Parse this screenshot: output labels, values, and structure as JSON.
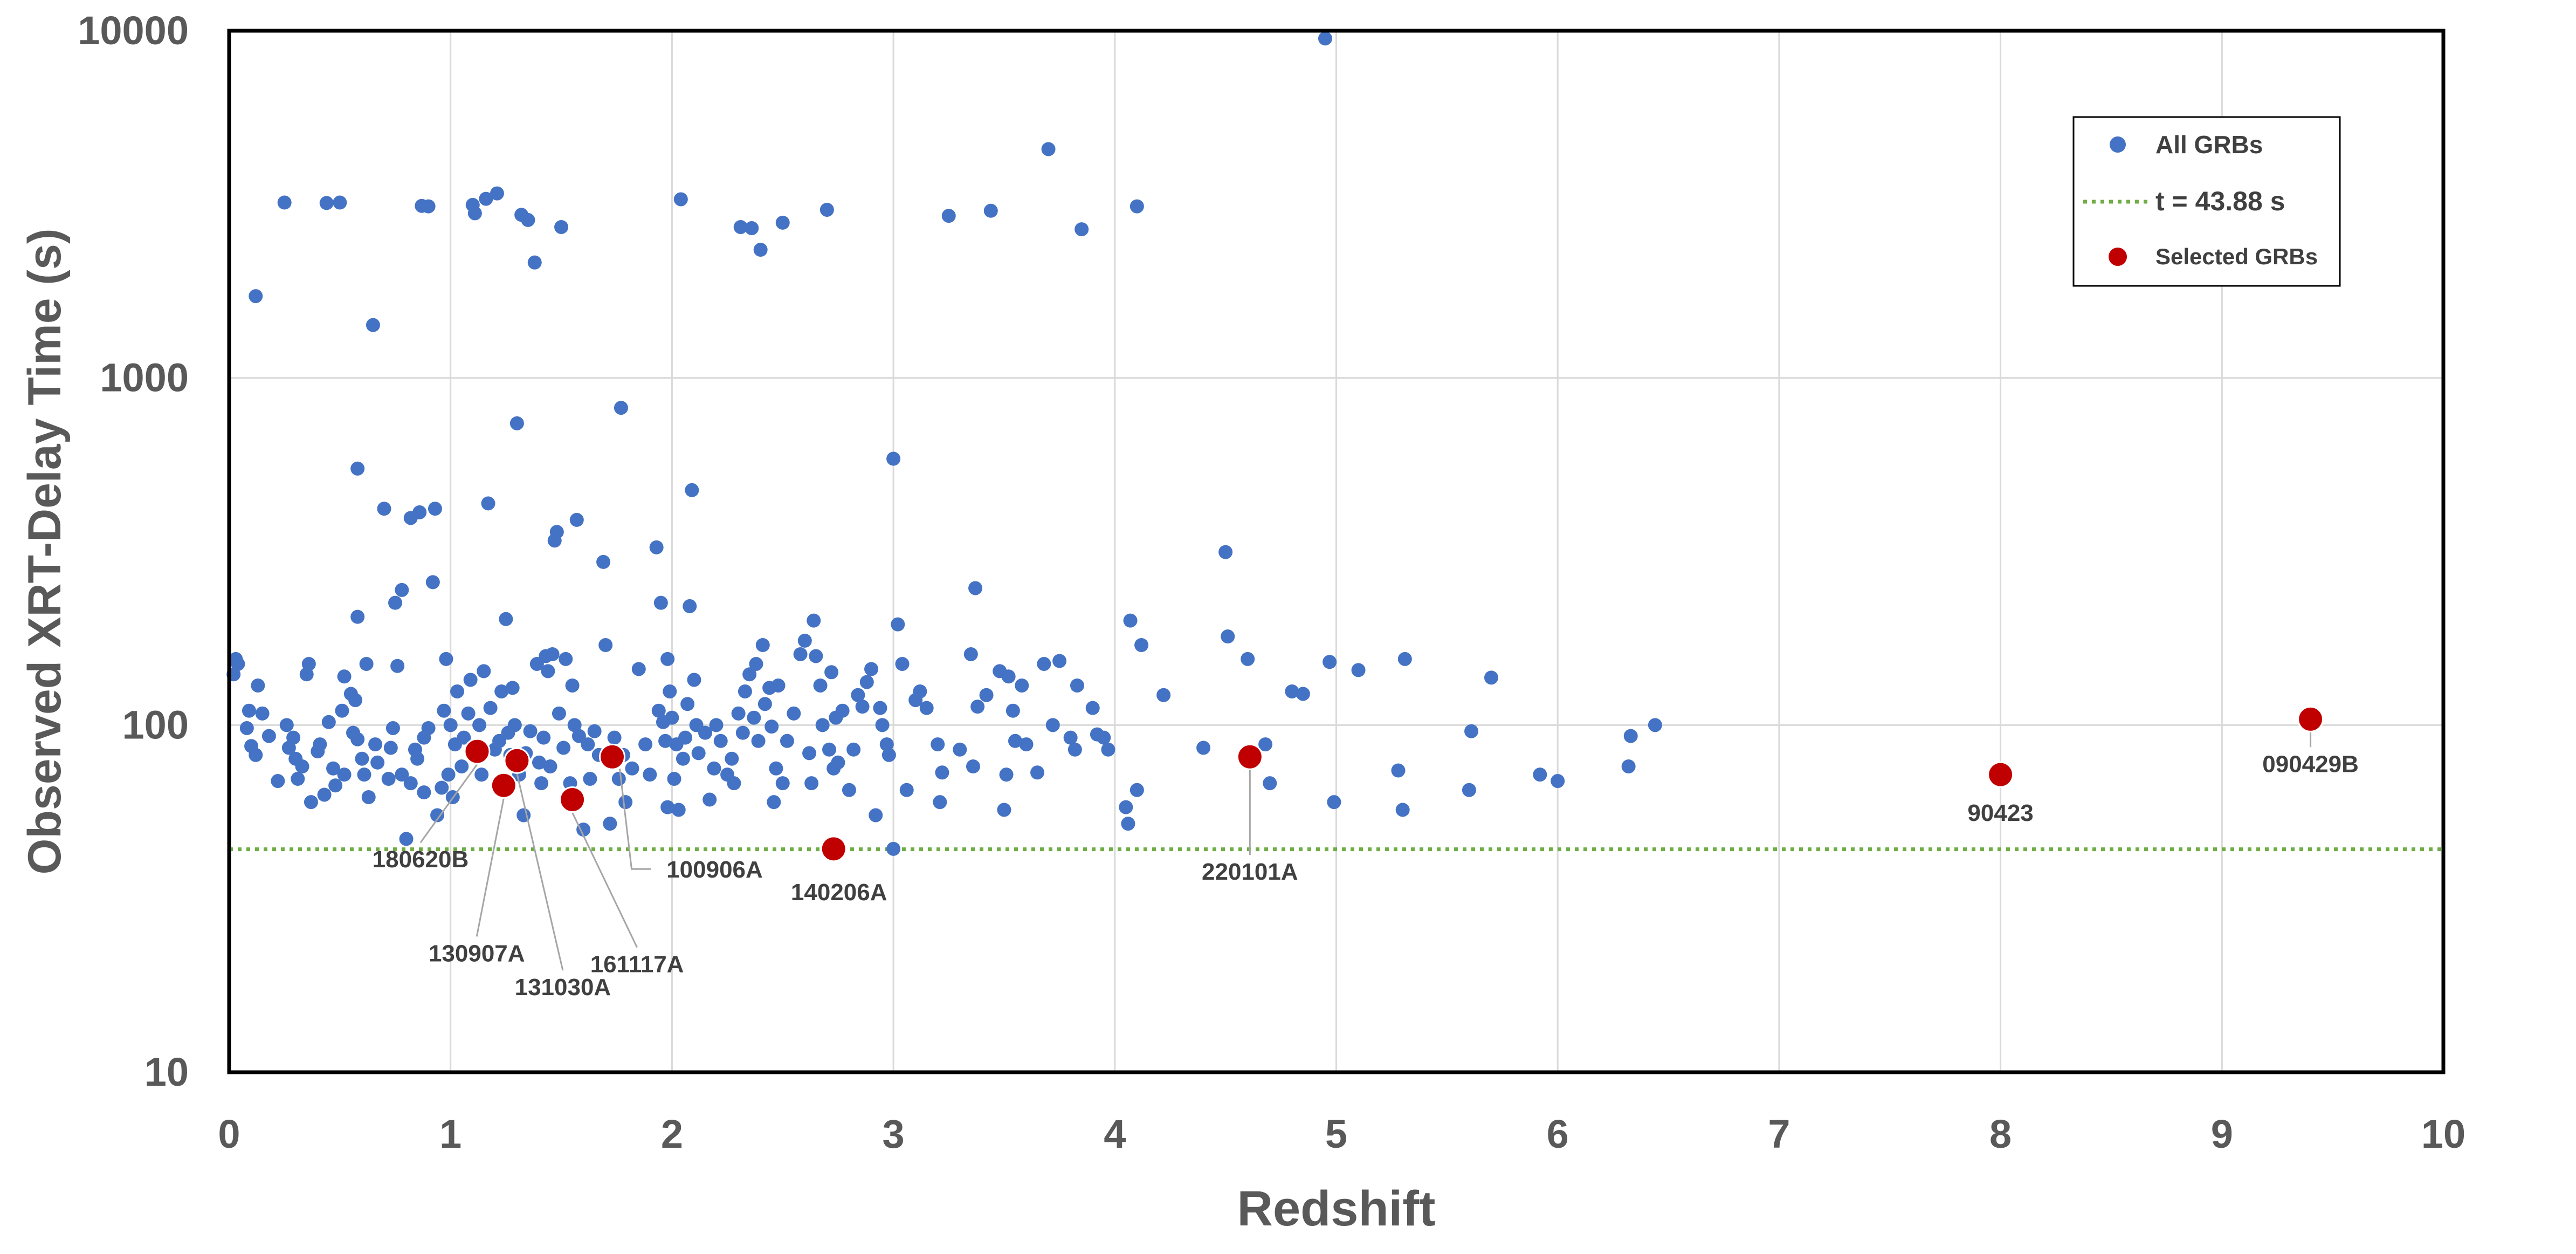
{
  "chart_data": {
    "type": "scatter",
    "title": "",
    "xlabel": "Redshift",
    "ylabel": "Observed XRT-Delay Time (s)",
    "xlim": [
      0,
      10
    ],
    "ylim": [
      10,
      10000
    ],
    "yscale": "log",
    "xticks": [
      "0",
      "1",
      "2",
      "3",
      "4",
      "5",
      "6",
      "7",
      "8",
      "9",
      "10"
    ],
    "yticks": [
      "10",
      "100",
      "1000",
      "10000"
    ],
    "grid": true,
    "legend_placement": "top-right",
    "legend": [
      "All GRBs",
      "t = 43.88 s",
      "Selected GRBs"
    ],
    "colors": {
      "all": "#4472c4",
      "threshold": "#70ad47",
      "selected": "#c00000"
    },
    "threshold": {
      "name": "t = 43.88 s",
      "y": 43.88
    },
    "series": [
      {
        "name": "All GRBs",
        "points": [
          [
            0.02,
            140
          ],
          [
            0.03,
            155
          ],
          [
            0.04,
            150
          ],
          [
            0.08,
            98
          ],
          [
            0.09,
            110
          ],
          [
            0.1,
            87
          ],
          [
            0.12,
            82
          ],
          [
            0.12,
            1720
          ],
          [
            0.13,
            130
          ],
          [
            0.15,
            108
          ],
          [
            0.18,
            93
          ],
          [
            0.22,
            69
          ],
          [
            0.25,
            3200
          ],
          [
            0.26,
            100
          ],
          [
            0.27,
            86
          ],
          [
            0.29,
            92
          ],
          [
            0.3,
            80
          ],
          [
            0.31,
            70
          ],
          [
            0.33,
            76
          ],
          [
            0.35,
            140
          ],
          [
            0.36,
            150
          ],
          [
            0.37,
            60
          ],
          [
            0.4,
            84
          ],
          [
            0.41,
            88
          ],
          [
            0.43,
            63
          ],
          [
            0.44,
            3190
          ],
          [
            0.45,
            102
          ],
          [
            0.47,
            75
          ],
          [
            0.48,
            67
          ],
          [
            0.5,
            3200
          ],
          [
            0.51,
            110
          ],
          [
            0.52,
            138
          ],
          [
            0.52,
            72
          ],
          [
            0.55,
            123
          ],
          [
            0.56,
            95
          ],
          [
            0.57,
            118
          ],
          [
            0.58,
            91
          ],
          [
            0.58,
            205
          ],
          [
            0.58,
            548
          ],
          [
            0.6,
            80
          ],
          [
            0.61,
            72
          ],
          [
            0.62,
            150
          ],
          [
            0.63,
            62
          ],
          [
            0.65,
            1420
          ],
          [
            0.66,
            88
          ],
          [
            0.67,
            78
          ],
          [
            0.7,
            420
          ],
          [
            0.72,
            70
          ],
          [
            0.73,
            86
          ],
          [
            0.74,
            98
          ],
          [
            0.75,
            225
          ],
          [
            0.76,
            148
          ],
          [
            0.78,
            245
          ],
          [
            0.78,
            72
          ],
          [
            0.8,
            47
          ],
          [
            0.82,
            68
          ],
          [
            0.82,
            395
          ],
          [
            0.84,
            85
          ],
          [
            0.85,
            80
          ],
          [
            0.86,
            410
          ],
          [
            0.87,
            3130
          ],
          [
            0.88,
            64
          ],
          [
            0.88,
            92
          ],
          [
            0.9,
            98
          ],
          [
            0.9,
            3120
          ],
          [
            0.92,
            258
          ],
          [
            0.93,
            420
          ],
          [
            0.94,
            55
          ],
          [
            0.96,
            66
          ],
          [
            0.97,
            110
          ],
          [
            0.98,
            155
          ],
          [
            0.99,
            72
          ],
          [
            1.0,
            100
          ],
          [
            1.01,
            62
          ],
          [
            1.02,
            88
          ],
          [
            1.03,
            125
          ],
          [
            1.05,
            76
          ],
          [
            1.06,
            92
          ],
          [
            1.08,
            108
          ],
          [
            1.09,
            135
          ],
          [
            1.1,
            3150
          ],
          [
            1.11,
            2980
          ],
          [
            1.12,
            82
          ],
          [
            1.13,
            100
          ],
          [
            1.14,
            72
          ],
          [
            1.15,
            143
          ],
          [
            1.16,
            3280
          ],
          [
            1.17,
            435
          ],
          [
            1.18,
            112
          ],
          [
            1.2,
            85
          ],
          [
            1.21,
            3400
          ],
          [
            1.22,
            90
          ],
          [
            1.23,
            125
          ],
          [
            1.25,
            202
          ],
          [
            1.26,
            95
          ],
          [
            1.27,
            82
          ],
          [
            1.28,
            128
          ],
          [
            1.29,
            100
          ],
          [
            1.3,
            740
          ],
          [
            1.31,
            72
          ],
          [
            1.32,
            2950
          ],
          [
            1.33,
            55
          ],
          [
            1.34,
            83
          ],
          [
            1.35,
            2850
          ],
          [
            1.36,
            96
          ],
          [
            1.38,
            2150
          ],
          [
            1.39,
            150
          ],
          [
            1.4,
            78
          ],
          [
            1.41,
            68
          ],
          [
            1.42,
            92
          ],
          [
            1.43,
            158
          ],
          [
            1.44,
            143
          ],
          [
            1.45,
            76
          ],
          [
            1.46,
            160
          ],
          [
            1.47,
            340
          ],
          [
            1.48,
            360
          ],
          [
            1.49,
            108
          ],
          [
            1.5,
            2720
          ],
          [
            1.51,
            86
          ],
          [
            1.52,
            155
          ],
          [
            1.54,
            68
          ],
          [
            1.55,
            130
          ],
          [
            1.56,
            100
          ],
          [
            1.57,
            390
          ],
          [
            1.58,
            93
          ],
          [
            1.6,
            50
          ],
          [
            1.62,
            88
          ],
          [
            1.63,
            70
          ],
          [
            1.65,
            96
          ],
          [
            1.67,
            82
          ],
          [
            1.69,
            295
          ],
          [
            1.7,
            170
          ],
          [
            1.72,
            52
          ],
          [
            1.74,
            92
          ],
          [
            1.76,
            70
          ],
          [
            1.77,
            820
          ],
          [
            1.78,
            82
          ],
          [
            1.79,
            60
          ],
          [
            1.82,
            75
          ],
          [
            1.85,
            145
          ],
          [
            1.88,
            88
          ],
          [
            1.9,
            72
          ],
          [
            1.93,
            325
          ],
          [
            1.94,
            110
          ],
          [
            1.95,
            225
          ],
          [
            1.96,
            102
          ],
          [
            1.97,
            90
          ],
          [
            1.98,
            155
          ],
          [
            1.98,
            58
          ],
          [
            1.99,
            125
          ],
          [
            2.0,
            105
          ],
          [
            2.01,
            70
          ],
          [
            2.02,
            88
          ],
          [
            2.03,
            57
          ],
          [
            2.04,
            3270
          ],
          [
            2.05,
            80
          ],
          [
            2.06,
            92
          ],
          [
            2.07,
            115
          ],
          [
            2.08,
            220
          ],
          [
            2.09,
            475
          ],
          [
            2.1,
            135
          ],
          [
            2.11,
            100
          ],
          [
            2.12,
            83
          ],
          [
            2.15,
            95
          ],
          [
            2.17,
            61
          ],
          [
            2.19,
            75
          ],
          [
            2.2,
            100
          ],
          [
            2.22,
            90
          ],
          [
            2.25,
            72
          ],
          [
            2.27,
            80
          ],
          [
            2.28,
            68
          ],
          [
            2.3,
            108
          ],
          [
            2.31,
            2720
          ],
          [
            2.32,
            95
          ],
          [
            2.33,
            125
          ],
          [
            2.35,
            140
          ],
          [
            2.36,
            2700
          ],
          [
            2.37,
            105
          ],
          [
            2.38,
            150
          ],
          [
            2.39,
            90
          ],
          [
            2.4,
            2340
          ],
          [
            2.41,
            170
          ],
          [
            2.42,
            115
          ],
          [
            2.44,
            128
          ],
          [
            2.45,
            99
          ],
          [
            2.46,
            60
          ],
          [
            2.47,
            75
          ],
          [
            2.48,
            130
          ],
          [
            2.5,
            68
          ],
          [
            2.5,
            2800
          ],
          [
            2.52,
            90
          ],
          [
            2.55,
            108
          ],
          [
            2.58,
            160
          ],
          [
            2.6,
            175
          ],
          [
            2.62,
            83
          ],
          [
            2.63,
            68
          ],
          [
            2.64,
            200
          ],
          [
            2.65,
            158
          ],
          [
            2.67,
            130
          ],
          [
            2.68,
            100
          ],
          [
            2.7,
            3050
          ],
          [
            2.71,
            85
          ],
          [
            2.72,
            142
          ],
          [
            2.73,
            75
          ],
          [
            2.74,
            105
          ],
          [
            2.75,
            78
          ],
          [
            2.77,
            110
          ],
          [
            2.8,
            65
          ],
          [
            2.82,
            85
          ],
          [
            2.84,
            122
          ],
          [
            2.86,
            113
          ],
          [
            2.88,
            133
          ],
          [
            2.9,
            145
          ],
          [
            2.92,
            55
          ],
          [
            2.94,
            112
          ],
          [
            2.95,
            100
          ],
          [
            2.97,
            88
          ],
          [
            2.98,
            82
          ],
          [
            3.0,
            44
          ],
          [
            3.0,
            585
          ],
          [
            3.02,
            195
          ],
          [
            3.04,
            150
          ],
          [
            3.06,
            65
          ],
          [
            3.1,
            118
          ],
          [
            3.12,
            125
          ],
          [
            3.15,
            112
          ],
          [
            3.2,
            88
          ],
          [
            3.21,
            60
          ],
          [
            3.22,
            73
          ],
          [
            3.25,
            2930
          ],
          [
            3.3,
            85
          ],
          [
            3.35,
            160
          ],
          [
            3.36,
            76
          ],
          [
            3.37,
            248
          ],
          [
            3.38,
            113
          ],
          [
            3.42,
            122
          ],
          [
            3.44,
            3030
          ],
          [
            3.48,
            143
          ],
          [
            3.5,
            57
          ],
          [
            3.51,
            72
          ],
          [
            3.52,
            138
          ],
          [
            3.54,
            110
          ],
          [
            3.55,
            90
          ],
          [
            3.58,
            130
          ],
          [
            3.6,
            88
          ],
          [
            3.65,
            73
          ],
          [
            3.68,
            150
          ],
          [
            3.7,
            4560
          ],
          [
            3.72,
            100
          ],
          [
            3.75,
            153
          ],
          [
            3.8,
            92
          ],
          [
            3.82,
            85
          ],
          [
            3.83,
            130
          ],
          [
            3.85,
            2680
          ],
          [
            3.9,
            112
          ],
          [
            3.92,
            94
          ],
          [
            3.95,
            92
          ],
          [
            3.97,
            85
          ],
          [
            4.05,
            58
          ],
          [
            4.06,
            52
          ],
          [
            4.07,
            200
          ],
          [
            4.1,
            65
          ],
          [
            4.1,
            3120
          ],
          [
            4.12,
            170
          ],
          [
            4.22,
            122
          ],
          [
            4.4,
            86
          ],
          [
            4.5,
            315
          ],
          [
            4.51,
            180
          ],
          [
            4.6,
            155
          ],
          [
            4.68,
            88
          ],
          [
            4.7,
            68
          ],
          [
            4.8,
            125
          ],
          [
            4.85,
            123
          ],
          [
            4.95,
            9500
          ],
          [
            4.97,
            152
          ],
          [
            4.99,
            60
          ],
          [
            5.1,
            144
          ],
          [
            5.28,
            74
          ],
          [
            5.3,
            57
          ],
          [
            5.31,
            155
          ],
          [
            5.6,
            65
          ],
          [
            5.61,
            96
          ],
          [
            5.7,
            137
          ],
          [
            5.92,
            72
          ],
          [
            6.0,
            69
          ],
          [
            6.32,
            76
          ],
          [
            6.33,
            93
          ],
          [
            6.44,
            100
          ]
        ]
      },
      {
        "name": "Selected GRBs",
        "points": [
          {
            "x": 1.12,
            "y": 84,
            "label": "180620B"
          },
          {
            "x": 1.24,
            "y": 67,
            "label": "130907A"
          },
          {
            "x": 1.3,
            "y": 79,
            "label": "131030A"
          },
          {
            "x": 1.55,
            "y": 61,
            "label": "161117A"
          },
          {
            "x": 1.73,
            "y": 81,
            "label": "100906A"
          },
          {
            "x": 2.73,
            "y": 44,
            "label": "140206A"
          },
          {
            "x": 4.61,
            "y": 81,
            "label": "220101A"
          },
          {
            "x": 8.0,
            "y": 72,
            "label": "90423"
          },
          {
            "x": 9.4,
            "y": 104,
            "label": "090429B"
          }
        ]
      }
    ]
  }
}
